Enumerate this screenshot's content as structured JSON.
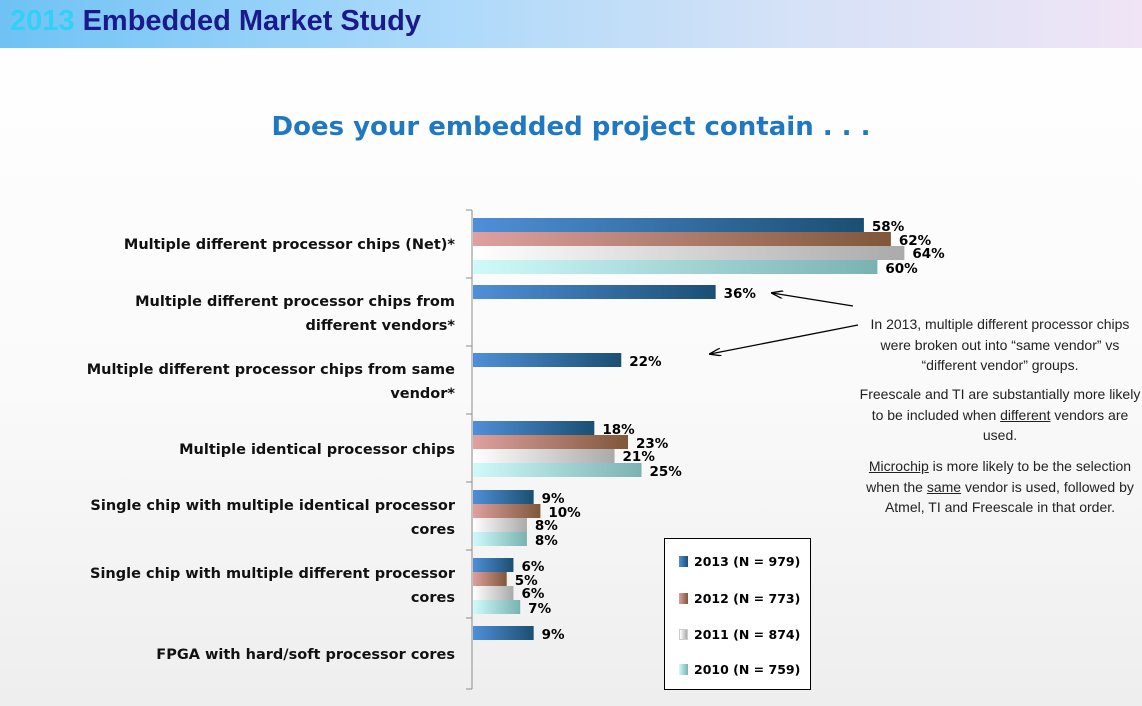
{
  "header": {
    "year": "2013",
    "title": "Embedded Market Study"
  },
  "question": "Does your embedded project contain . . .",
  "chart_data": {
    "type": "bar",
    "orientation": "horizontal",
    "title": "Does your embedded project contain . . .",
    "categories": [
      "Multiple different processor chips (Net)*",
      "Multiple different processor chips from different vendors*",
      "Multiple different processor chips from same vendor*",
      "Multiple identical processor chips",
      "Single chip with multiple identical processor cores",
      "Single chip with multiple different processor cores",
      "FPGA with hard/soft processor cores"
    ],
    "series": [
      {
        "name": "2013 (N = 979)",
        "values": [
          58,
          36,
          22,
          18,
          9,
          6,
          9
        ]
      },
      {
        "name": "2012 (N = 773)",
        "values": [
          62,
          null,
          null,
          23,
          10,
          5,
          null
        ]
      },
      {
        "name": "2011 (N = 874)",
        "values": [
          64,
          null,
          null,
          21,
          8,
          6,
          null
        ]
      },
      {
        "name": "2010 (N = 759)",
        "values": [
          60,
          null,
          null,
          25,
          8,
          7,
          null
        ]
      }
    ],
    "value_suffix": "%",
    "xlim": [
      0,
      100
    ],
    "legend_position": "bottom-right"
  },
  "colors": {
    "s2013": [
      "#4f8fd8",
      "#1b4f72"
    ],
    "s2012": [
      "#dea0a0",
      "#80573a"
    ],
    "s2011": [
      "#ffffff",
      "#aaaaaa"
    ],
    "s2010": [
      "#d0fafa",
      "#7ab2b2"
    ]
  },
  "notes": {
    "p1": "In 2013, multiple different processor chips were broken out into “same vendor” vs “different vendor” groups.",
    "p2_a": "Freescale and TI are substantially more likely to be included when ",
    "p2_u": "different",
    "p2_b": " vendors are used.",
    "p3_u1": "Microchip",
    "p3_a": " is more likely to be the selection  when the ",
    "p3_u2": "same",
    "p3_b": " vendor is used, followed by Atmel, TI and Freescale in that order."
  }
}
